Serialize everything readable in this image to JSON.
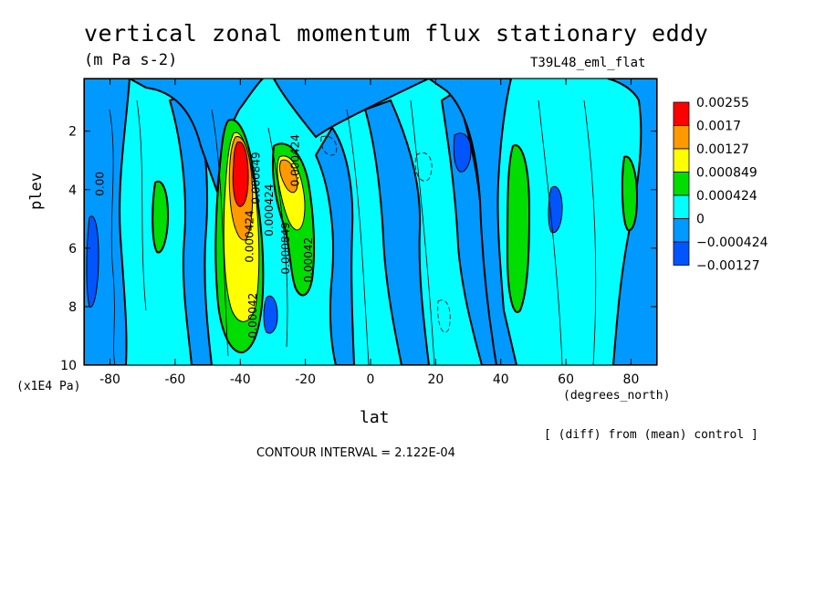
{
  "chart_data": {
    "type": "heatmap",
    "title": "vertical zonal momentum flux stationary eddy",
    "subtitle": "(m Pa s-2)",
    "run_name": "T39L48_eml_flat",
    "xlabel": "lat",
    "x_unit": "(degrees_north)",
    "ylabel": "plev",
    "y_unit": "(x1E4 Pa)",
    "xlim": [
      -88,
      88
    ],
    "ylim": [
      10,
      0.2
    ],
    "x_ticks": [
      -80,
      -60,
      -40,
      -20,
      0,
      20,
      40,
      60,
      80
    ],
    "x_tick_labels": [
      "-80",
      "-60",
      "-40",
      "-20",
      "0",
      "20",
      "40",
      "60",
      "80"
    ],
    "y_ticks": [
      2,
      4,
      6,
      8,
      10
    ],
    "y_tick_labels": [
      "2",
      "4",
      "6",
      "8",
      "10"
    ],
    "legend": {
      "position": "right",
      "levels": [
        "0.00255",
        "0.0017",
        "0.00127",
        "0.000849",
        "0.000424",
        "0",
        "−0.000424",
        "−0.00127"
      ],
      "colors": [
        "#ff0000",
        "#ff9900",
        "#ffff00",
        "#00dd00",
        "#00ffff",
        "#0099ff",
        "#0055ff"
      ]
    },
    "contour_labels": [
      "0.00",
      "0.000849",
      "0.000424",
      "0.000424",
      "0.000424",
      "0.00042",
      "0.000849",
      "0.00042"
    ],
    "features": [
      {
        "name": "SH positive core",
        "lat": -39,
        "plev": 3,
        "value": 0.00255
      },
      {
        "name": "SH secondary max",
        "lat": -27,
        "plev": 3.5,
        "value": 0.00127
      },
      {
        "name": "NH positive band",
        "lat": 46,
        "plev": 5,
        "value": 0.000424
      },
      {
        "name": "NH negative",
        "lat": 29,
        "plev": 2.5,
        "value": -0.000424
      },
      {
        "name": "polar negative",
        "lat": 58,
        "plev": 4.5,
        "value": -0.000424
      },
      {
        "name": "SH polar negative",
        "lat": -85,
        "plev": 7,
        "value": -0.00127
      }
    ],
    "note": "[ (diff) from (mean) control ]",
    "contour_interval": "CONTOUR INTERVAL = 2.122E-04"
  }
}
